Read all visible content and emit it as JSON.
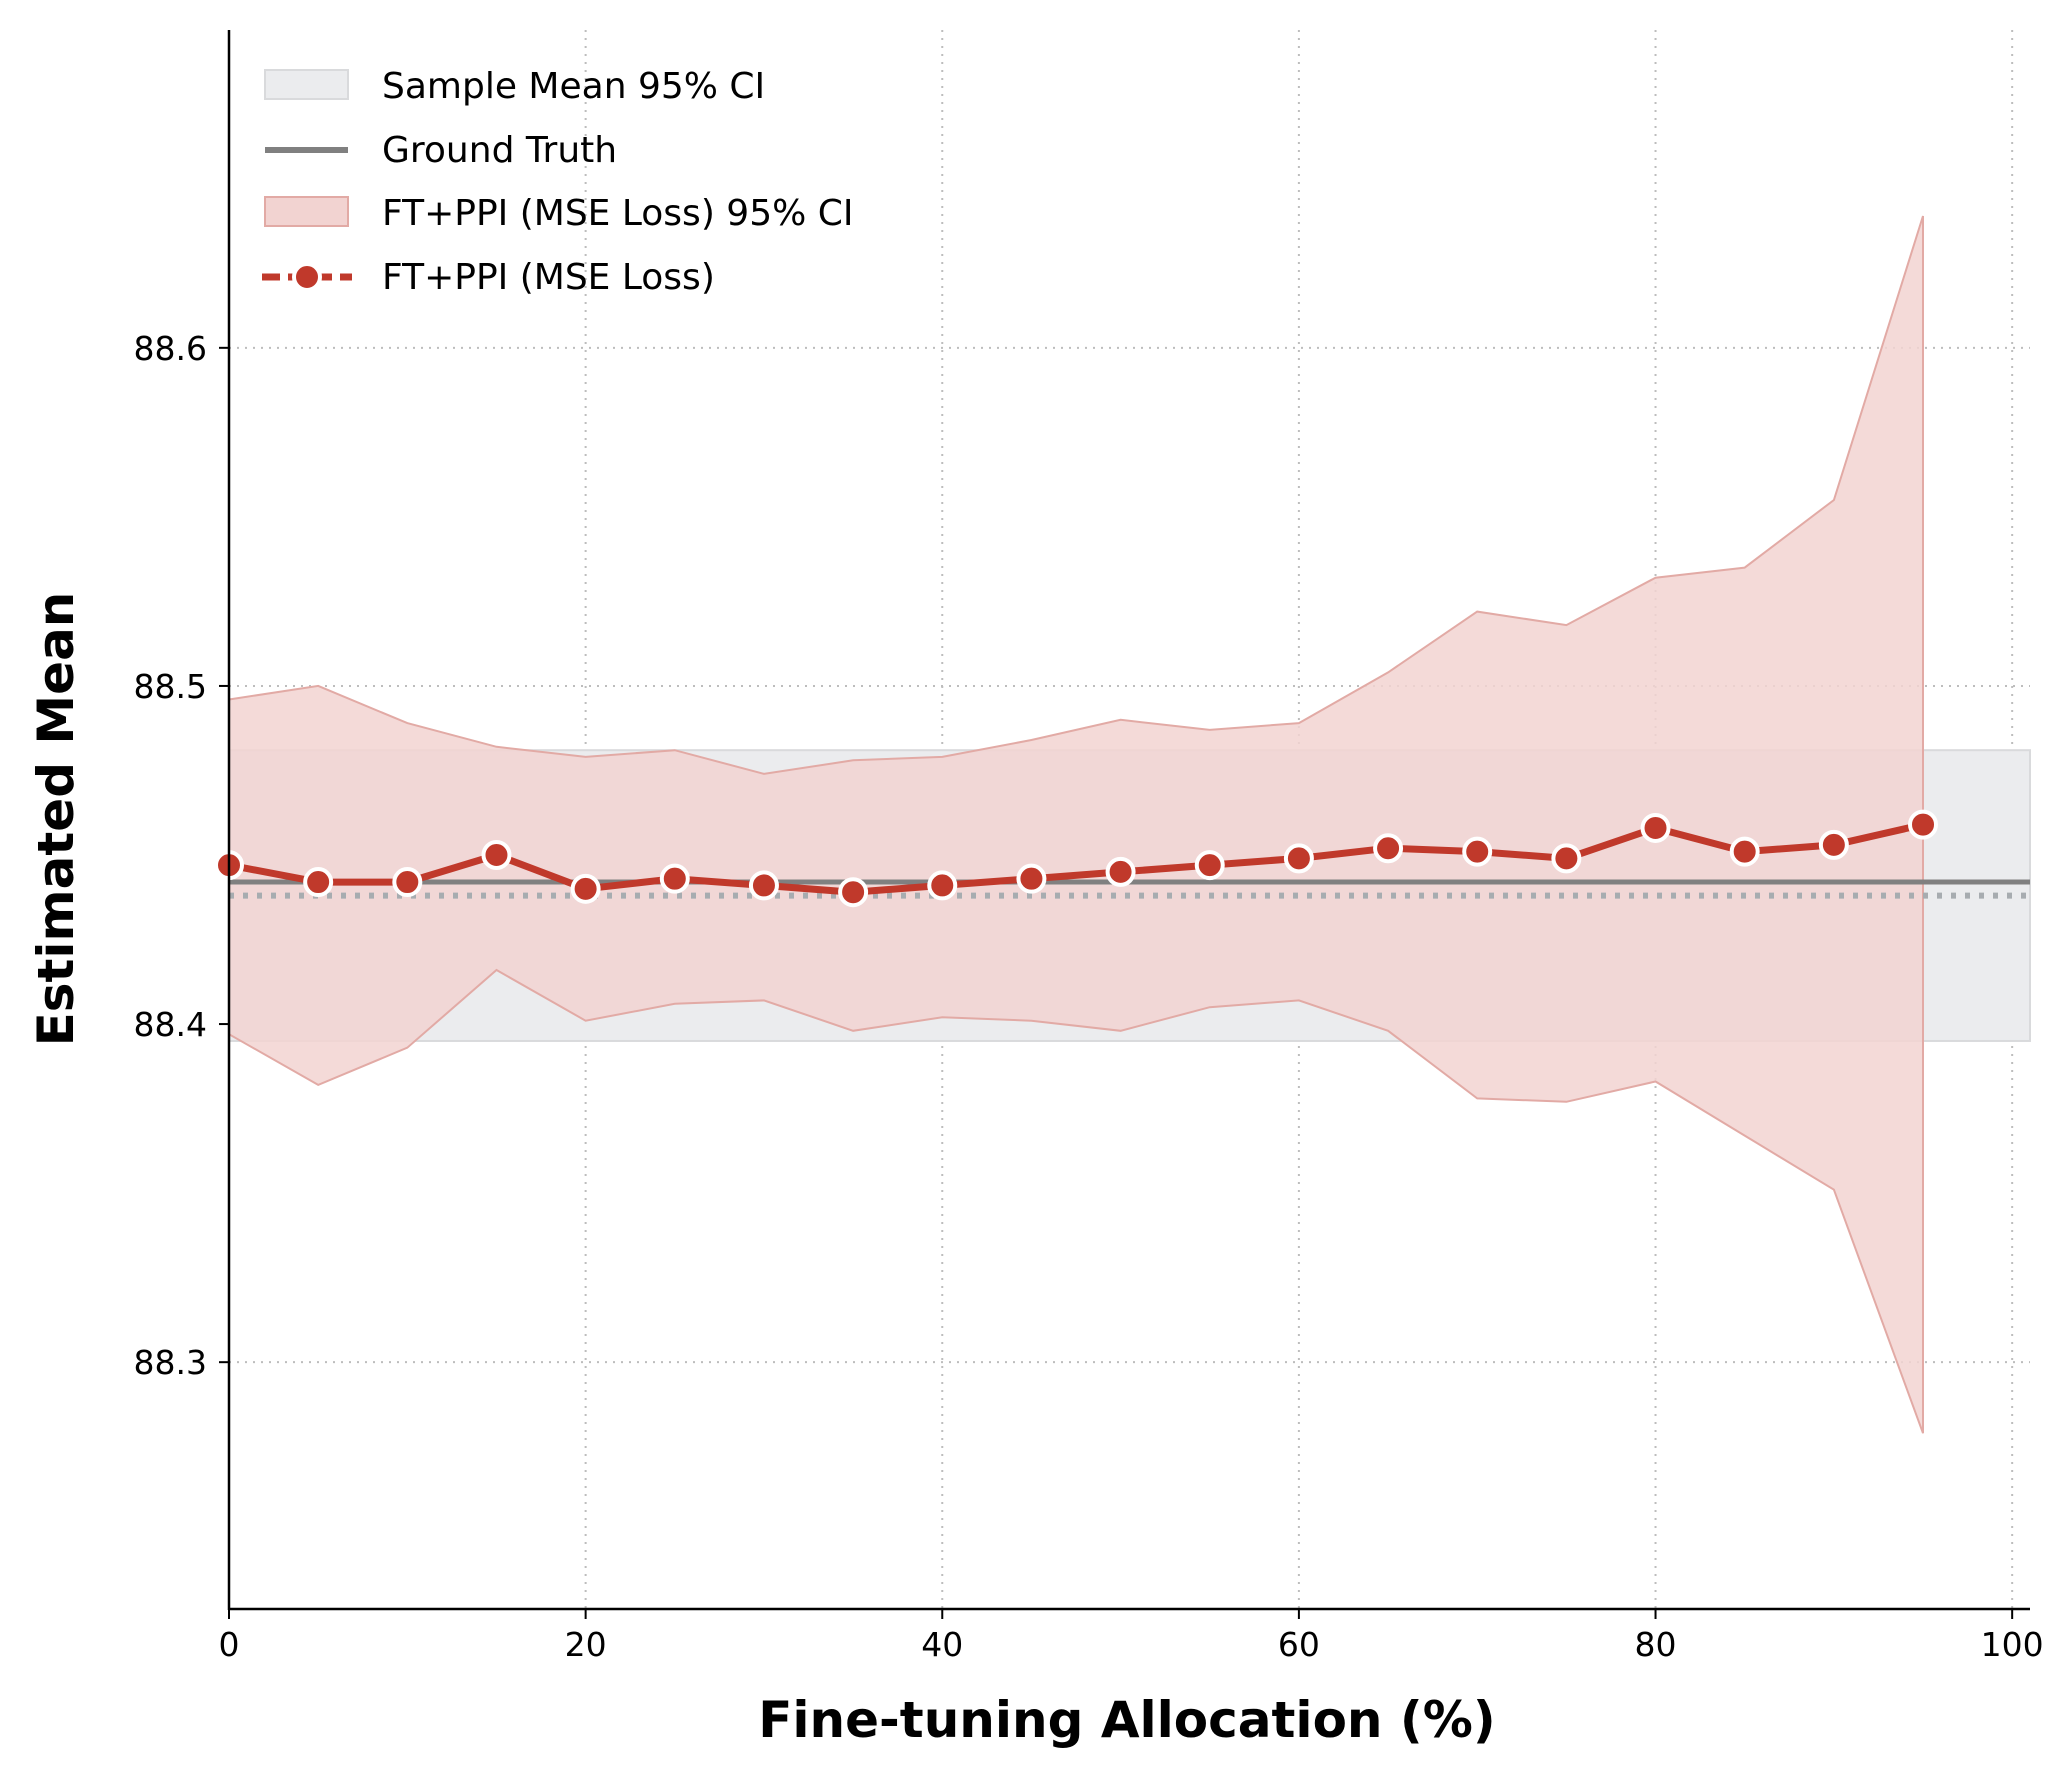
{
  "chart_data": {
    "type": "line",
    "title": "",
    "xlabel": "Fine-tuning Allocation (%)",
    "ylabel": "Estimated Mean",
    "xlim": [
      0,
      101
    ],
    "ylim": [
      88.227,
      88.694
    ],
    "xticks": [
      0,
      20,
      40,
      60,
      80,
      100
    ],
    "yticks": [
      88.3,
      88.4,
      88.5,
      88.6
    ],
    "xtick_labels": [
      "0",
      "20",
      "40",
      "60",
      "80",
      "100"
    ],
    "ytick_labels": [
      "88.3",
      "88.4",
      "88.5",
      "88.6"
    ],
    "grid": true,
    "legend_position": "top-left",
    "ground_truth": 88.442,
    "sample_mean": 88.438,
    "sample_mean_ci": [
      88.395,
      88.481
    ],
    "series": [
      {
        "name": "FT+PPI (MSE Loss)",
        "x": [
          0,
          5,
          10,
          15,
          20,
          25,
          30,
          35,
          40,
          45,
          50,
          55,
          60,
          65,
          70,
          75,
          80,
          85,
          90,
          95
        ],
        "values": [
          88.447,
          88.442,
          88.442,
          88.45,
          88.44,
          88.443,
          88.441,
          88.439,
          88.441,
          88.443,
          88.445,
          88.447,
          88.449,
          88.452,
          88.451,
          88.449,
          88.458,
          88.451,
          88.453,
          88.459
        ],
        "ci_lower": [
          88.397,
          88.382,
          88.393,
          88.416,
          88.401,
          88.406,
          88.407,
          88.398,
          88.402,
          88.401,
          88.398,
          88.405,
          88.407,
          88.398,
          88.378,
          88.377,
          88.383,
          88.367,
          88.351,
          88.279
        ],
        "ci_upper": [
          88.496,
          88.5,
          88.489,
          88.482,
          88.479,
          88.481,
          88.474,
          88.478,
          88.479,
          88.484,
          88.49,
          88.487,
          88.489,
          88.504,
          88.522,
          88.518,
          88.532,
          88.535,
          88.555,
          88.639
        ]
      }
    ],
    "legend": [
      {
        "label": "Sample Mean 95% CI"
      },
      {
        "label": "Ground Truth"
      },
      {
        "label": "FT+PPI (MSE Loss) 95% CI"
      },
      {
        "label": "FT+PPI (MSE Loss)"
      }
    ],
    "colors": {
      "series": "#c0392b",
      "series_ci_fill": "#f2d3d1",
      "series_ci_edge": "#e2aaa5",
      "sample_ci_fill": "#ebecee",
      "sample_ci_edge": "#d9dadc",
      "ground_truth": "#808080",
      "sample_mean_line": "#a7acb0",
      "grid": "#bdbdbd"
    }
  }
}
